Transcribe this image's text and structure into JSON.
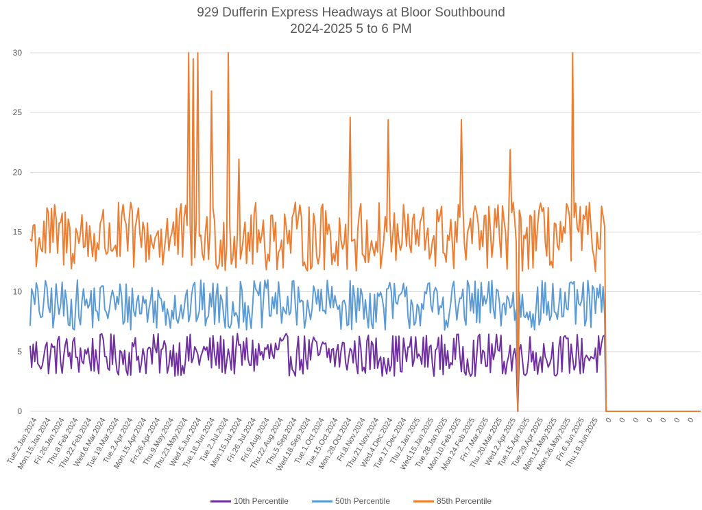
{
  "chart_data": {
    "type": "line",
    "title": "929 Dufferin Express Headways at Bloor Southbound",
    "subtitle": "2024-2025 5 to 6 PM",
    "xlabel": "",
    "ylabel": "",
    "ylim": [
      0,
      30
    ],
    "yticks": [
      0,
      5,
      10,
      15,
      20,
      25,
      30
    ],
    "grid": true,
    "legend_position": "bottom",
    "notes": "Individual daily values are estimated to match the visible bands and spikes; they are not exact readings. Axis ticks, labels, ranges, and the trailing zeros are read directly from the image.",
    "x_tick_labels": [
      "Tue.2.Jan.2024",
      "Mon.15.Jan.2024",
      "Fri.26.Jan.2024",
      "Thu.8.Feb.2024",
      "Thu.22.Feb.2024",
      "Wed.6.Mar.2024",
      "Tue.19.Mar.2024",
      "Tue.2.Apr.2024",
      "Mon.15.Apr.2024",
      "Fri.26.Apr.2024",
      "Thu.9.May.2024",
      "Thu.23.May.2024",
      "Wed.5.Jun.2024",
      "Tue.18.Jun.2024",
      "Tue.2.Jul.2024",
      "Mon.15.Jul.2024",
      "Fri.26.Jul.2024",
      "Fri.9.Aug.2024",
      "Thu.22.Aug.2024",
      "Thu.5.Sep.2024",
      "Wed.18.Sep.2024",
      "Tue.1.Oct.2024",
      "Tue.15.Oct.2024",
      "Mon.28.Oct.2024",
      "Fri.8.Nov.2024",
      "Thu.21.Nov.2024",
      "Wed.4.Dec.2024",
      "Tue.17.Dec.2024",
      "Thu.2.Jan.2025",
      "Wed.15.Jan.2025",
      "Tue.28.Jan.2025",
      "Mon.10.Feb.2025",
      "Mon.24.Feb.2025",
      "Fri.7.Mar.2025",
      "Thu.20.Mar.2025",
      "Wed.2.Apr.2025",
      "Tue.15.Apr.2025",
      "Tue.29.Apr.2025",
      "Mon.12.May.2025",
      "Mon.26.May.2025",
      "Fri.6.Jun.2025",
      "Thu.19.Jun.2025",
      "0",
      "0",
      "0",
      "0",
      "0",
      "0",
      "0"
    ],
    "points_per_tick": 9,
    "data_ticks": 42,
    "zero_ticks": 7,
    "series": [
      {
        "name": "10th Percentile",
        "color": "#7030A0",
        "band": [
          1,
          6.5
        ]
      },
      {
        "name": "50th Percentile",
        "color": "#5B9BD5",
        "band": [
          4.5,
          11
        ]
      },
      {
        "name": "85th Percentile",
        "color": "#ED7D31",
        "band": [
          8.5,
          17.5
        ]
      }
    ],
    "spikes_85th": [
      {
        "tick": 11.6,
        "value": 30
      },
      {
        "tick": 11.9,
        "value": 29.5
      },
      {
        "tick": 12.2,
        "value": 30
      },
      {
        "tick": 13.2,
        "value": 26.8
      },
      {
        "tick": 14.4,
        "value": 30
      },
      {
        "tick": 15.2,
        "value": 21.1
      },
      {
        "tick": 23.3,
        "value": 24.6
      },
      {
        "tick": 26.1,
        "value": 24.4
      },
      {
        "tick": 31.4,
        "value": 24.4
      },
      {
        "tick": 35.0,
        "value": 21.9
      },
      {
        "tick": 39.6,
        "value": 30
      }
    ],
    "dips_to_zero": [
      {
        "tick": 35.5
      }
    ]
  },
  "legend": [
    {
      "label": "10th Percentile"
    },
    {
      "label": "50th Percentile"
    },
    {
      "label": "85th Percentile"
    }
  ]
}
